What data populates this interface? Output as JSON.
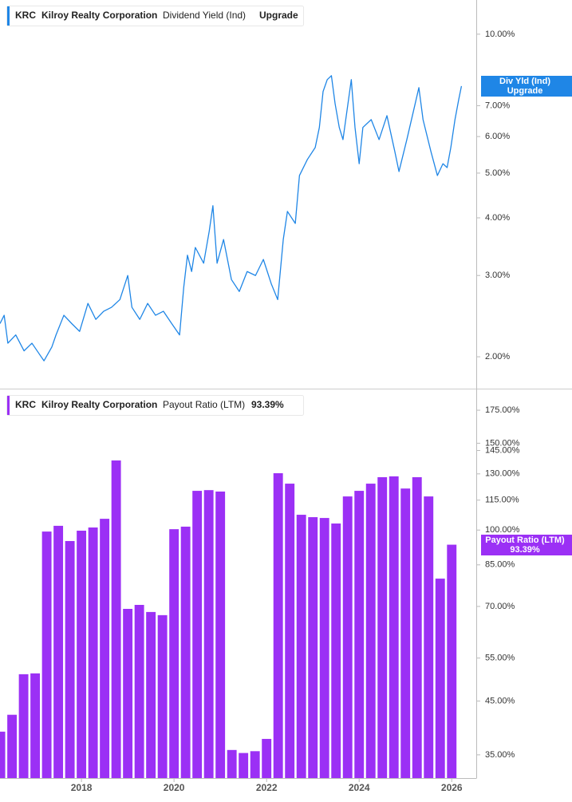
{
  "chart_data": [
    {
      "type": "line",
      "ticker": "KRC",
      "company": "Kilroy Realty Corporation",
      "yscale": "log",
      "xlim": [
        2016.24,
        2026.53
      ],
      "ylim": [
        1.706,
        11.86
      ],
      "yticks": [
        {
          "value": 2,
          "label": "2.00%"
        },
        {
          "value": 3,
          "label": "3.00%"
        },
        {
          "value": 4,
          "label": "4.00%"
        },
        {
          "value": 5,
          "label": "5.00%"
        },
        {
          "value": 6,
          "label": "6.00%"
        },
        {
          "value": 7,
          "label": "7.00%"
        },
        {
          "value": 10,
          "label": "10.00%"
        }
      ],
      "x": [
        2016.24,
        2016.33,
        2016.41,
        2016.58,
        2016.76,
        2016.93,
        2017.1,
        2017.19,
        2017.36,
        2017.45,
        2017.62,
        2017.79,
        2017.96,
        2018.14,
        2018.31,
        2018.48,
        2018.65,
        2018.83,
        2019.0,
        2019.09,
        2019.26,
        2019.43,
        2019.6,
        2019.77,
        2019.95,
        2020.12,
        2020.21,
        2020.29,
        2020.38,
        2020.46,
        2020.64,
        2020.76,
        2020.84,
        2020.93,
        2021.07,
        2021.24,
        2021.41,
        2021.58,
        2021.76,
        2021.93,
        2022.1,
        2022.24,
        2022.36,
        2022.45,
        2022.62,
        2022.71,
        2022.88,
        2023.05,
        2023.14,
        2023.22,
        2023.31,
        2023.4,
        2023.48,
        2023.57,
        2023.65,
        2023.83,
        2023.91,
        2024.0,
        2024.08,
        2024.26,
        2024.43,
        2024.6,
        2024.77,
        2024.86,
        2025.03,
        2025.21,
        2025.29,
        2025.38,
        2025.55,
        2025.69,
        2025.81,
        2025.9,
        2025.98,
        2026.07,
        2026.15,
        2026.21
      ],
      "series": [
        {
          "name": "Dividend Yield (Ind)",
          "short_name": "Div Yld (Ind)",
          "status": "Upgrade",
          "color": "#1f86e6",
          "values": [
            2.36,
            2.46,
            2.14,
            2.23,
            2.06,
            2.14,
            2.02,
            1.96,
            2.1,
            2.23,
            2.46,
            2.36,
            2.27,
            2.61,
            2.41,
            2.51,
            2.56,
            2.66,
            3.0,
            2.56,
            2.41,
            2.61,
            2.46,
            2.51,
            2.36,
            2.23,
            2.83,
            3.32,
            3.06,
            3.45,
            3.19,
            3.74,
            4.25,
            3.19,
            3.59,
            2.94,
            2.77,
            3.06,
            3.0,
            3.25,
            2.88,
            2.66,
            3.59,
            4.13,
            3.89,
            4.94,
            5.35,
            5.68,
            6.28,
            7.51,
            7.97,
            8.13,
            7.07,
            6.28,
            5.91,
            7.97,
            6.28,
            5.24,
            6.28,
            6.53,
            5.91,
            6.66,
            5.57,
            5.04,
            5.91,
            7.07,
            7.66,
            6.53,
            5.57,
            4.94,
            5.24,
            5.14,
            5.68,
            6.53,
            7.21,
            7.72
          ]
        }
      ]
    },
    {
      "type": "bar",
      "ticker": "KRC",
      "company": "Kilroy Realty Corporation",
      "yscale": "log",
      "xlim": [
        2016.24,
        2026.53
      ],
      "ylim": [
        31.4,
        190
      ],
      "xticks": [
        2018,
        2020,
        2022,
        2024,
        2026
      ],
      "yticks": [
        {
          "value": 35,
          "label": "35.00%"
        },
        {
          "value": 45,
          "label": "45.00%"
        },
        {
          "value": 55,
          "label": "55.00%"
        },
        {
          "value": 70,
          "label": "70.00%"
        },
        {
          "value": 85,
          "label": "85.00%"
        },
        {
          "value": 100,
          "label": "100.00%"
        },
        {
          "value": 115,
          "label": "115.00%"
        },
        {
          "value": 130,
          "label": "130.00%"
        },
        {
          "value": 145,
          "label": "145.00%"
        },
        {
          "value": 150,
          "label": "150.00%"
        },
        {
          "value": 175,
          "label": "175.00%"
        }
      ],
      "x": [
        2016.25,
        2016.5,
        2016.75,
        2017,
        2017.25,
        2017.5,
        2017.75,
        2018,
        2018.25,
        2018.5,
        2018.75,
        2019,
        2019.25,
        2019.5,
        2019.75,
        2020,
        2020.25,
        2020.5,
        2020.75,
        2021,
        2021.25,
        2021.5,
        2021.75,
        2022,
        2022.25,
        2022.5,
        2022.75,
        2023,
        2023.25,
        2023.5,
        2023.75,
        2024,
        2024.25,
        2024.5,
        2024.75,
        2025,
        2025.25,
        2025.5,
        2025.75,
        2026
      ],
      "series": [
        {
          "name": "Payout Ratio (LTM)",
          "last_value_label": "93.39%",
          "color": "#9b30f5",
          "values": [
            39.0,
            42.2,
            51.0,
            51.2,
            99.3,
            102.0,
            95.0,
            99.7,
            101.2,
            105.4,
            138.4,
            69.2,
            70.5,
            68.2,
            67.2,
            100.4,
            101.6,
            120.1,
            120.5,
            119.7,
            35.8,
            35.3,
            35.6,
            37.7,
            130.4,
            124.2,
            107.4,
            106.2,
            105.8,
            103.1,
            117.0,
            120.1,
            124.2,
            128.0,
            128.5,
            121.4,
            128.0,
            117.0,
            79.7,
            93.39
          ]
        }
      ]
    }
  ]
}
